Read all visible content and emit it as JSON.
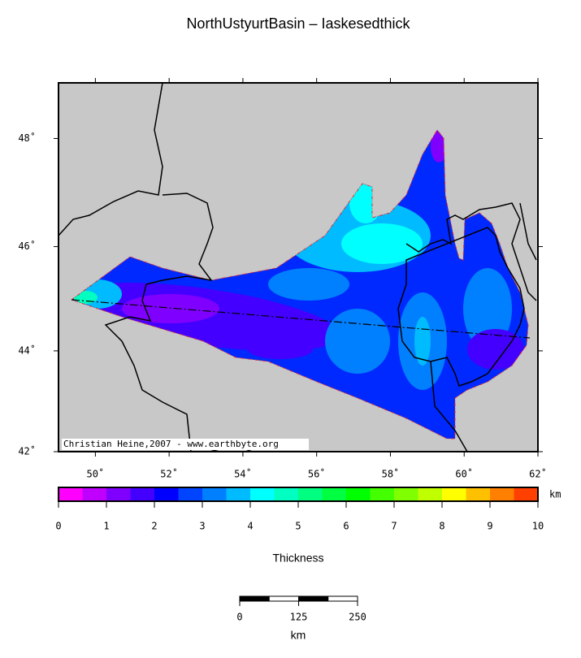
{
  "title": "NorthUstyurtBasin – Iaskesedthick",
  "map": {
    "projection": "mercator",
    "xlim": [
      49,
      62
    ],
    "ylim": [
      42,
      49
    ],
    "xticks": [
      {
        "value": 50,
        "label": "50˚"
      },
      {
        "value": 52,
        "label": "52˚"
      },
      {
        "value": 54,
        "label": "54˚"
      },
      {
        "value": 56,
        "label": "56˚"
      },
      {
        "value": 58,
        "label": "58˚"
      },
      {
        "value": 60,
        "label": "60˚"
      },
      {
        "value": 62,
        "label": "62˚"
      }
    ],
    "yticks": [
      {
        "value": 42,
        "label": "42˚"
      },
      {
        "value": 44,
        "label": "44˚"
      },
      {
        "value": 46,
        "label": "46˚"
      },
      {
        "value": 48,
        "label": "48˚"
      }
    ],
    "credit": "Christian Heine,2007 - www.earthbyte.org"
  },
  "colorbar": {
    "lim": [
      0,
      10
    ],
    "ticks": [
      0,
      1,
      2,
      3,
      4,
      5,
      6,
      7,
      8,
      9,
      10
    ],
    "unit": "km",
    "label": "Thickness",
    "colors": [
      "#ff00ff",
      "#c000ff",
      "#8000ff",
      "#4400ff",
      "#0000ff",
      "#0044ff",
      "#0080ff",
      "#00bbff",
      "#00ffff",
      "#00ffc0",
      "#00ff80",
      "#00ff40",
      "#00ff00",
      "#44ff00",
      "#80ff00",
      "#c0ff00",
      "#ffff00",
      "#ffc000",
      "#ff8000",
      "#ff4000"
    ]
  },
  "scalebar": {
    "lim": [
      0,
      250
    ],
    "ticks": [
      0,
      125,
      250
    ],
    "unit": "km"
  }
}
